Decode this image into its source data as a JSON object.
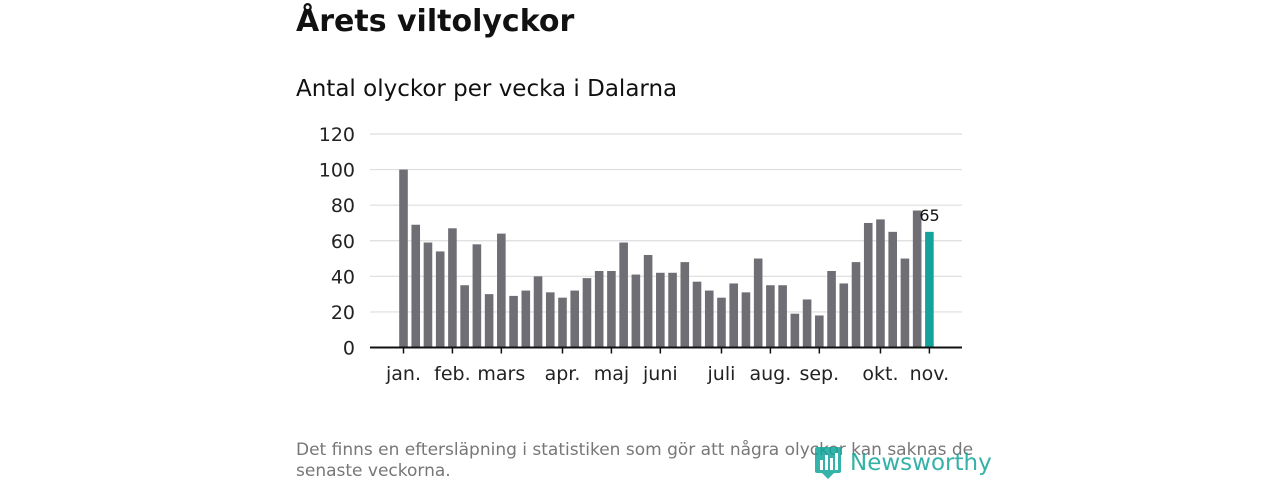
{
  "title": "Årets viltolyckor",
  "subtitle": "Antal olyckor per vecka i Dalarna",
  "footnote": "Det finns en eftersläpning i statistiken som gör att några olyckor kan saknas de senaste veckorna.",
  "brand": "Newsworthy",
  "colors": {
    "bar": "#6f6e74",
    "highlight": "#13a39a",
    "grid": "#dddddd",
    "axis": "#111111",
    "brand": "#12a59a"
  },
  "chart_data": {
    "type": "bar",
    "title": "Antal olyckor per vecka i Dalarna",
    "xlabel": "",
    "ylabel": "",
    "ylim": [
      0,
      120
    ],
    "yticks": [
      0,
      20,
      40,
      60,
      80,
      100,
      120
    ],
    "values": [
      100,
      69,
      59,
      54,
      67,
      35,
      58,
      30,
      64,
      29,
      32,
      40,
      31,
      28,
      32,
      39,
      43,
      43,
      59,
      41,
      52,
      42,
      42,
      48,
      37,
      32,
      28,
      36,
      31,
      50,
      35,
      35,
      19,
      27,
      18,
      43,
      36,
      48,
      70,
      72,
      65,
      50,
      77,
      65
    ],
    "highlight_index": 43,
    "highlight_label": "65",
    "month_labels": [
      {
        "label": "jan.",
        "week": 0
      },
      {
        "label": "feb.",
        "week": 4
      },
      {
        "label": "mars",
        "week": 8
      },
      {
        "label": "apr.",
        "week": 13
      },
      {
        "label": "maj",
        "week": 17
      },
      {
        "label": "juni",
        "week": 21
      },
      {
        "label": "juli",
        "week": 26
      },
      {
        "label": "aug.",
        "week": 30
      },
      {
        "label": "sep.",
        "week": 34
      },
      {
        "label": "okt.",
        "week": 39
      },
      {
        "label": "nov.",
        "week": 43
      }
    ]
  }
}
